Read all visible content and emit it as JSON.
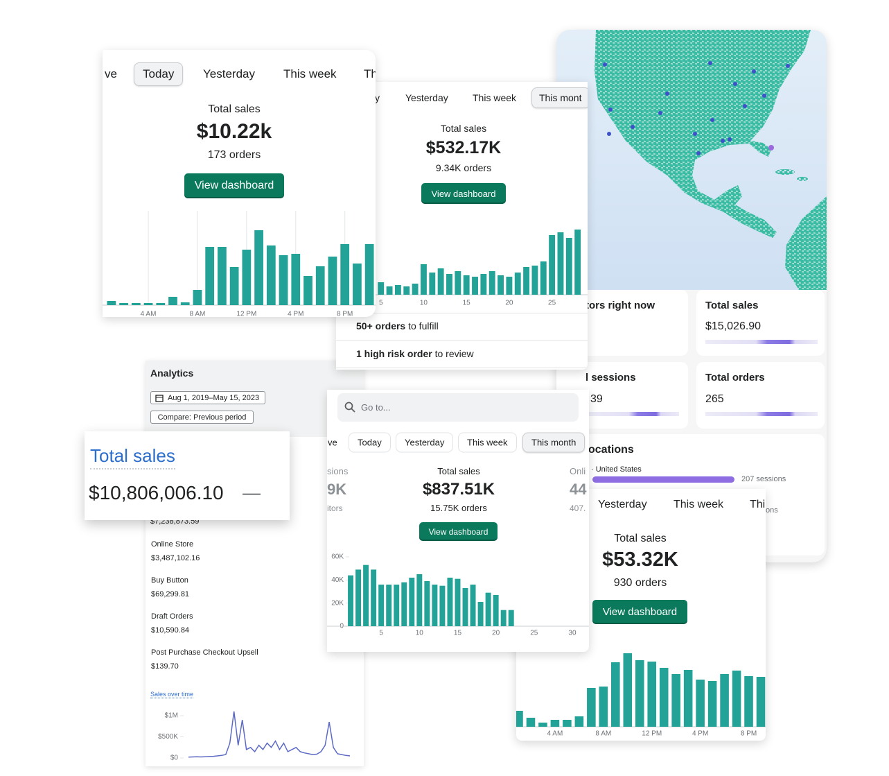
{
  "card_today": {
    "tabs": [
      "ve",
      "Today",
      "Yesterday",
      "This week",
      "Th"
    ],
    "active_tab": 1,
    "label": "Total sales",
    "value": "$10.22k",
    "orders": "173 orders",
    "button": "View dashboard",
    "chart": {
      "type": "bar",
      "color": "#23a398",
      "grid": true,
      "x": [
        1,
        2,
        3,
        4,
        5,
        6,
        7,
        8,
        9,
        10,
        11,
        12,
        13,
        14,
        15,
        16,
        17,
        18,
        19,
        20,
        21,
        22
      ],
      "values": [
        6,
        3,
        3,
        3,
        3,
        12,
        4,
        22,
        84,
        84,
        55,
        80,
        108,
        86,
        72,
        74,
        42,
        56,
        70,
        88,
        60,
        88
      ],
      "xlim": [
        0.5,
        22.5
      ],
      "ylim": [
        0,
        120
      ],
      "xticks": [
        {
          "value": 4,
          "label": "4 AM"
        },
        {
          "value": 8,
          "label": "8 AM"
        },
        {
          "value": 12,
          "label": "12 PM"
        },
        {
          "value": 16,
          "label": "4 PM"
        },
        {
          "value": 20,
          "label": "8 PM"
        }
      ]
    }
  },
  "card_month": {
    "tabs": [
      "y",
      "Yesterday",
      "This week",
      "This mont"
    ],
    "active_tab": 3,
    "label": "Total sales",
    "value": "$532.17K",
    "orders": "9.34K orders",
    "button": "View dashboard",
    "chart": {
      "type": "bar",
      "color": "#23a398",
      "x": [
        4,
        5,
        6,
        7,
        8,
        9,
        10,
        11,
        12,
        13,
        14,
        15,
        16,
        17,
        18,
        19,
        20,
        21,
        22,
        23,
        24,
        25,
        26,
        27,
        28
      ],
      "values": [
        14,
        18,
        12,
        14,
        12,
        16,
        44,
        32,
        38,
        30,
        34,
        28,
        26,
        30,
        34,
        28,
        26,
        32,
        40,
        42,
        48,
        86,
        90,
        82,
        94
      ],
      "xlim": [
        0,
        29
      ],
      "ylim": [
        0,
        100
      ],
      "xticks": [
        5,
        10,
        15,
        20,
        25
      ]
    },
    "tasks": [
      {
        "bold": "50+ orders",
        "text": "to fulfill"
      },
      {
        "bold": "1 high risk order",
        "text": "to review"
      }
    ]
  },
  "map_panel": {
    "visitors": "tors right now",
    "sales": {
      "label": "Total sales",
      "value": "$15,026.90"
    },
    "sessions": {
      "label": "l sessions",
      "value": "39"
    },
    "orders": {
      "label": "Total orders",
      "value": "265"
    },
    "locations": {
      "label": "ocations",
      "country": "· United States",
      "count": "207 sessions",
      "tail": "ons"
    }
  },
  "analytics": {
    "title": "Analytics",
    "date_range": "Aug 1, 2019–May 15, 2023",
    "compare": "Compare: Previous period",
    "hidden_total": "$7,238,873.59",
    "channels": [
      {
        "name": "Online Store",
        "amount": "$3,487,102.16"
      },
      {
        "name": "Buy Button",
        "amount": "$69,299.81"
      },
      {
        "name": "Draft Orders",
        "amount": "$10,590.84"
      },
      {
        "name": "Post Purchase Checkout Upsell",
        "amount": "$139.70"
      }
    ],
    "chart": {
      "type": "line",
      "title": "Sales over time",
      "color": "#5c6ac4",
      "ylim": [
        0,
        1000000
      ],
      "yticks": [
        {
          "value": 1000000,
          "label": "$1M"
        },
        {
          "value": 500000,
          "label": "$500K"
        },
        {
          "value": 0,
          "label": "$0"
        }
      ],
      "values": [
        20000,
        25000,
        30000,
        25000,
        30000,
        35000,
        40000,
        50000,
        60000,
        80000,
        350000,
        1100000,
        300000,
        900000,
        200000,
        250000,
        150000,
        300000,
        200000,
        350000,
        250000,
        400000,
        200000,
        350000,
        150000,
        200000,
        250000,
        150000,
        120000,
        100000,
        80000,
        90000,
        150000,
        300000,
        850000,
        250000,
        100000,
        80000,
        60000,
        50000
      ]
    }
  },
  "total_sales_card": {
    "label": "Total sales",
    "value": "$10,806,006.10",
    "trend": "—"
  },
  "card_search": {
    "search": "Go to...",
    "tabs": [
      "ve",
      "Today",
      "Yesterday",
      "This week",
      "This month"
    ],
    "active_tab": 4,
    "left": {
      "label": "sions",
      "value": "9K",
      "sub": "itors"
    },
    "right": {
      "label": "Onli",
      "value": "44",
      "sub": "407."
    },
    "label": "Total sales",
    "value": "$837.51K",
    "orders": "15.75K orders",
    "button": "View dashboard",
    "chart": {
      "type": "bar",
      "color": "#23a398",
      "x": [
        1,
        2,
        3,
        4,
        5,
        6,
        7,
        8,
        9,
        10,
        11,
        12,
        13,
        14,
        15,
        16,
        17,
        18,
        19,
        20,
        21,
        22
      ],
      "values": [
        44000,
        49000,
        53000,
        49000,
        36000,
        36000,
        36000,
        38000,
        42000,
        45000,
        39000,
        36000,
        35000,
        42000,
        41000,
        33000,
        36000,
        21000,
        29000,
        27000,
        14000,
        14000
      ],
      "xlim": [
        0,
        31
      ],
      "ylim": [
        0,
        60000
      ],
      "xticks": [
        5,
        10,
        15,
        20,
        25,
        30
      ],
      "yticks": [
        {
          "value": 60000,
          "label": "60K"
        },
        {
          "value": 40000,
          "label": "40K"
        },
        {
          "value": 20000,
          "label": "20K"
        },
        0
      ]
    }
  },
  "card_yesterday": {
    "tabs": [
      "Yesterday",
      "This week",
      "Thi"
    ],
    "label": "Total sales",
    "value": "$53.32K",
    "orders": "930 orders",
    "button": "View dashboard",
    "chart": {
      "type": "bar",
      "color": "#23a398",
      "x": [
        1,
        2,
        3,
        4,
        5,
        6,
        7,
        8,
        9,
        10,
        11,
        12,
        13,
        14,
        15,
        16,
        17,
        18,
        19,
        20,
        21
      ],
      "values": [
        23,
        13,
        6,
        10,
        10,
        15,
        56,
        58,
        93,
        106,
        96,
        94,
        85,
        76,
        82,
        68,
        66,
        76,
        81,
        73,
        72
      ],
      "xlim": [
        0.8,
        21.4
      ],
      "ylim": [
        0,
        120
      ],
      "xticks": [
        {
          "value": 4,
          "label": "4 AM"
        },
        {
          "value": 8,
          "label": "8 AM"
        },
        {
          "value": 12,
          "label": "12 PM"
        },
        {
          "value": 16,
          "label": "4 PM"
        },
        {
          "value": 20,
          "label": "8 PM"
        }
      ]
    }
  }
}
